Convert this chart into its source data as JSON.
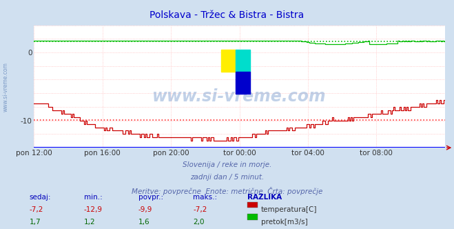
{
  "title": "Polskava - Tržec & Bistra - Bistra",
  "title_color": "#0000cc",
  "bg_color": "#d0e0f0",
  "plot_bg_color": "#ffffff",
  "x_min": 0,
  "x_max": 288,
  "y_min": -14,
  "y_max": 4,
  "y_ticks": [
    -10,
    0
  ],
  "x_tick_labels": [
    "pon 12:00",
    "pon 16:00",
    "pon 20:00",
    "tor 00:00",
    "tor 04:00",
    "tor 08:00"
  ],
  "x_tick_positions": [
    0,
    48,
    96,
    144,
    192,
    240
  ],
  "subtitle1": "Slovenija / reke in morje.",
  "subtitle2": "zadnji dan / 5 minut.",
  "subtitle3": "Meritve: povprečne  Enote: metrične  Črta: povprečje",
  "subtitle_color": "#5566aa",
  "watermark": "www.si-vreme.com",
  "stats_label_color": "#0000bb",
  "stats_headers": [
    "sedaj:",
    "min.:",
    "povpr.:",
    "maks.:",
    "RAZLIKA"
  ],
  "stats_temp": [
    "-7,2",
    "-12,9",
    "-9,9",
    "-7,2"
  ],
  "stats_flow": [
    "1,7",
    "1,2",
    "1,6",
    "2,0"
  ],
  "legend_temp_color": "#cc0000",
  "legend_flow_color": "#00bb00",
  "legend_temp_label": "temperatura[C]",
  "legend_flow_label": "pretok[m3/s]",
  "avg_temp": -9.9,
  "avg_flow": 1.6,
  "temp_color": "#cc0000",
  "flow_color": "#00bb00",
  "grid_h_color": "#ffbbbb",
  "grid_v_color": "#ffbbbb",
  "axis_line_color": "#0000ff",
  "side_text_color": "#6688bb"
}
